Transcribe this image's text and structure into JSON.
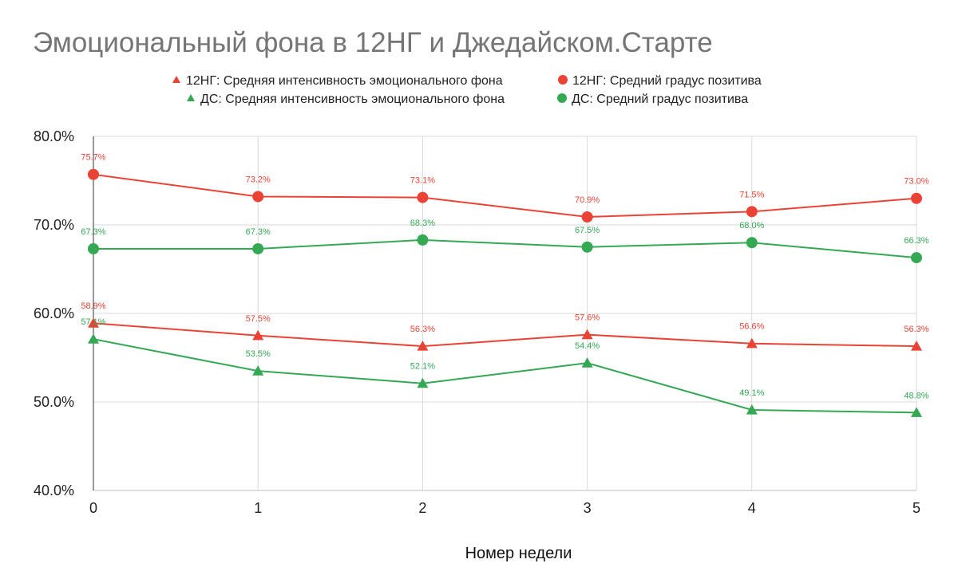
{
  "chart_data": {
    "type": "line",
    "title": "Эмоциональный фона в 12НГ и Джедайском.Старте",
    "xlabel": "Номер недели",
    "ylabel": "",
    "x": [
      0,
      1,
      2,
      3,
      4,
      5
    ],
    "x_tick_labels": [
      "0",
      "1",
      "2",
      "3",
      "4",
      "5"
    ],
    "ylim": [
      0.4,
      0.8
    ],
    "y_ticks": [
      0.4,
      0.5,
      0.6,
      0.7,
      0.8
    ],
    "y_tick_labels": [
      "40.0%",
      "50.0%",
      "60.0%",
      "70.0%",
      "80.0%"
    ],
    "grid": true,
    "legend_position": "top",
    "series": [
      {
        "name": "12НГ: Средняя интенсивность эмоционального фона",
        "marker": "triangle",
        "color": "#ea4335",
        "values": [
          0.589,
          0.575,
          0.563,
          0.576,
          0.566,
          0.563
        ],
        "labels": [
          "58.9%",
          "57.5%",
          "56.3%",
          "57.6%",
          "56.6%",
          "56.3%"
        ]
      },
      {
        "name": "12НГ: Средний градус позитива",
        "marker": "circle",
        "color": "#ea4335",
        "values": [
          0.757,
          0.732,
          0.731,
          0.709,
          0.715,
          0.73
        ],
        "labels": [
          "75.7%",
          "73.2%",
          "73.1%",
          "70.9%",
          "71.5%",
          "73.0%"
        ]
      },
      {
        "name": "ДС: Средняя интенсивность эмоционального фона",
        "marker": "triangle",
        "color": "#34a853",
        "values": [
          0.571,
          0.535,
          0.521,
          0.544,
          0.491,
          0.488
        ],
        "labels": [
          "57.1%",
          "53.5%",
          "52.1%",
          "54.4%",
          "49.1%",
          "48.8%"
        ]
      },
      {
        "name": "ДС: Средний градус позитива",
        "marker": "circle",
        "color": "#34a853",
        "values": [
          0.673,
          0.673,
          0.683,
          0.675,
          0.68,
          0.663
        ],
        "labels": [
          "67.3%",
          "67.3%",
          "68.3%",
          "67.5%",
          "68.0%",
          "66.3%"
        ]
      }
    ]
  }
}
